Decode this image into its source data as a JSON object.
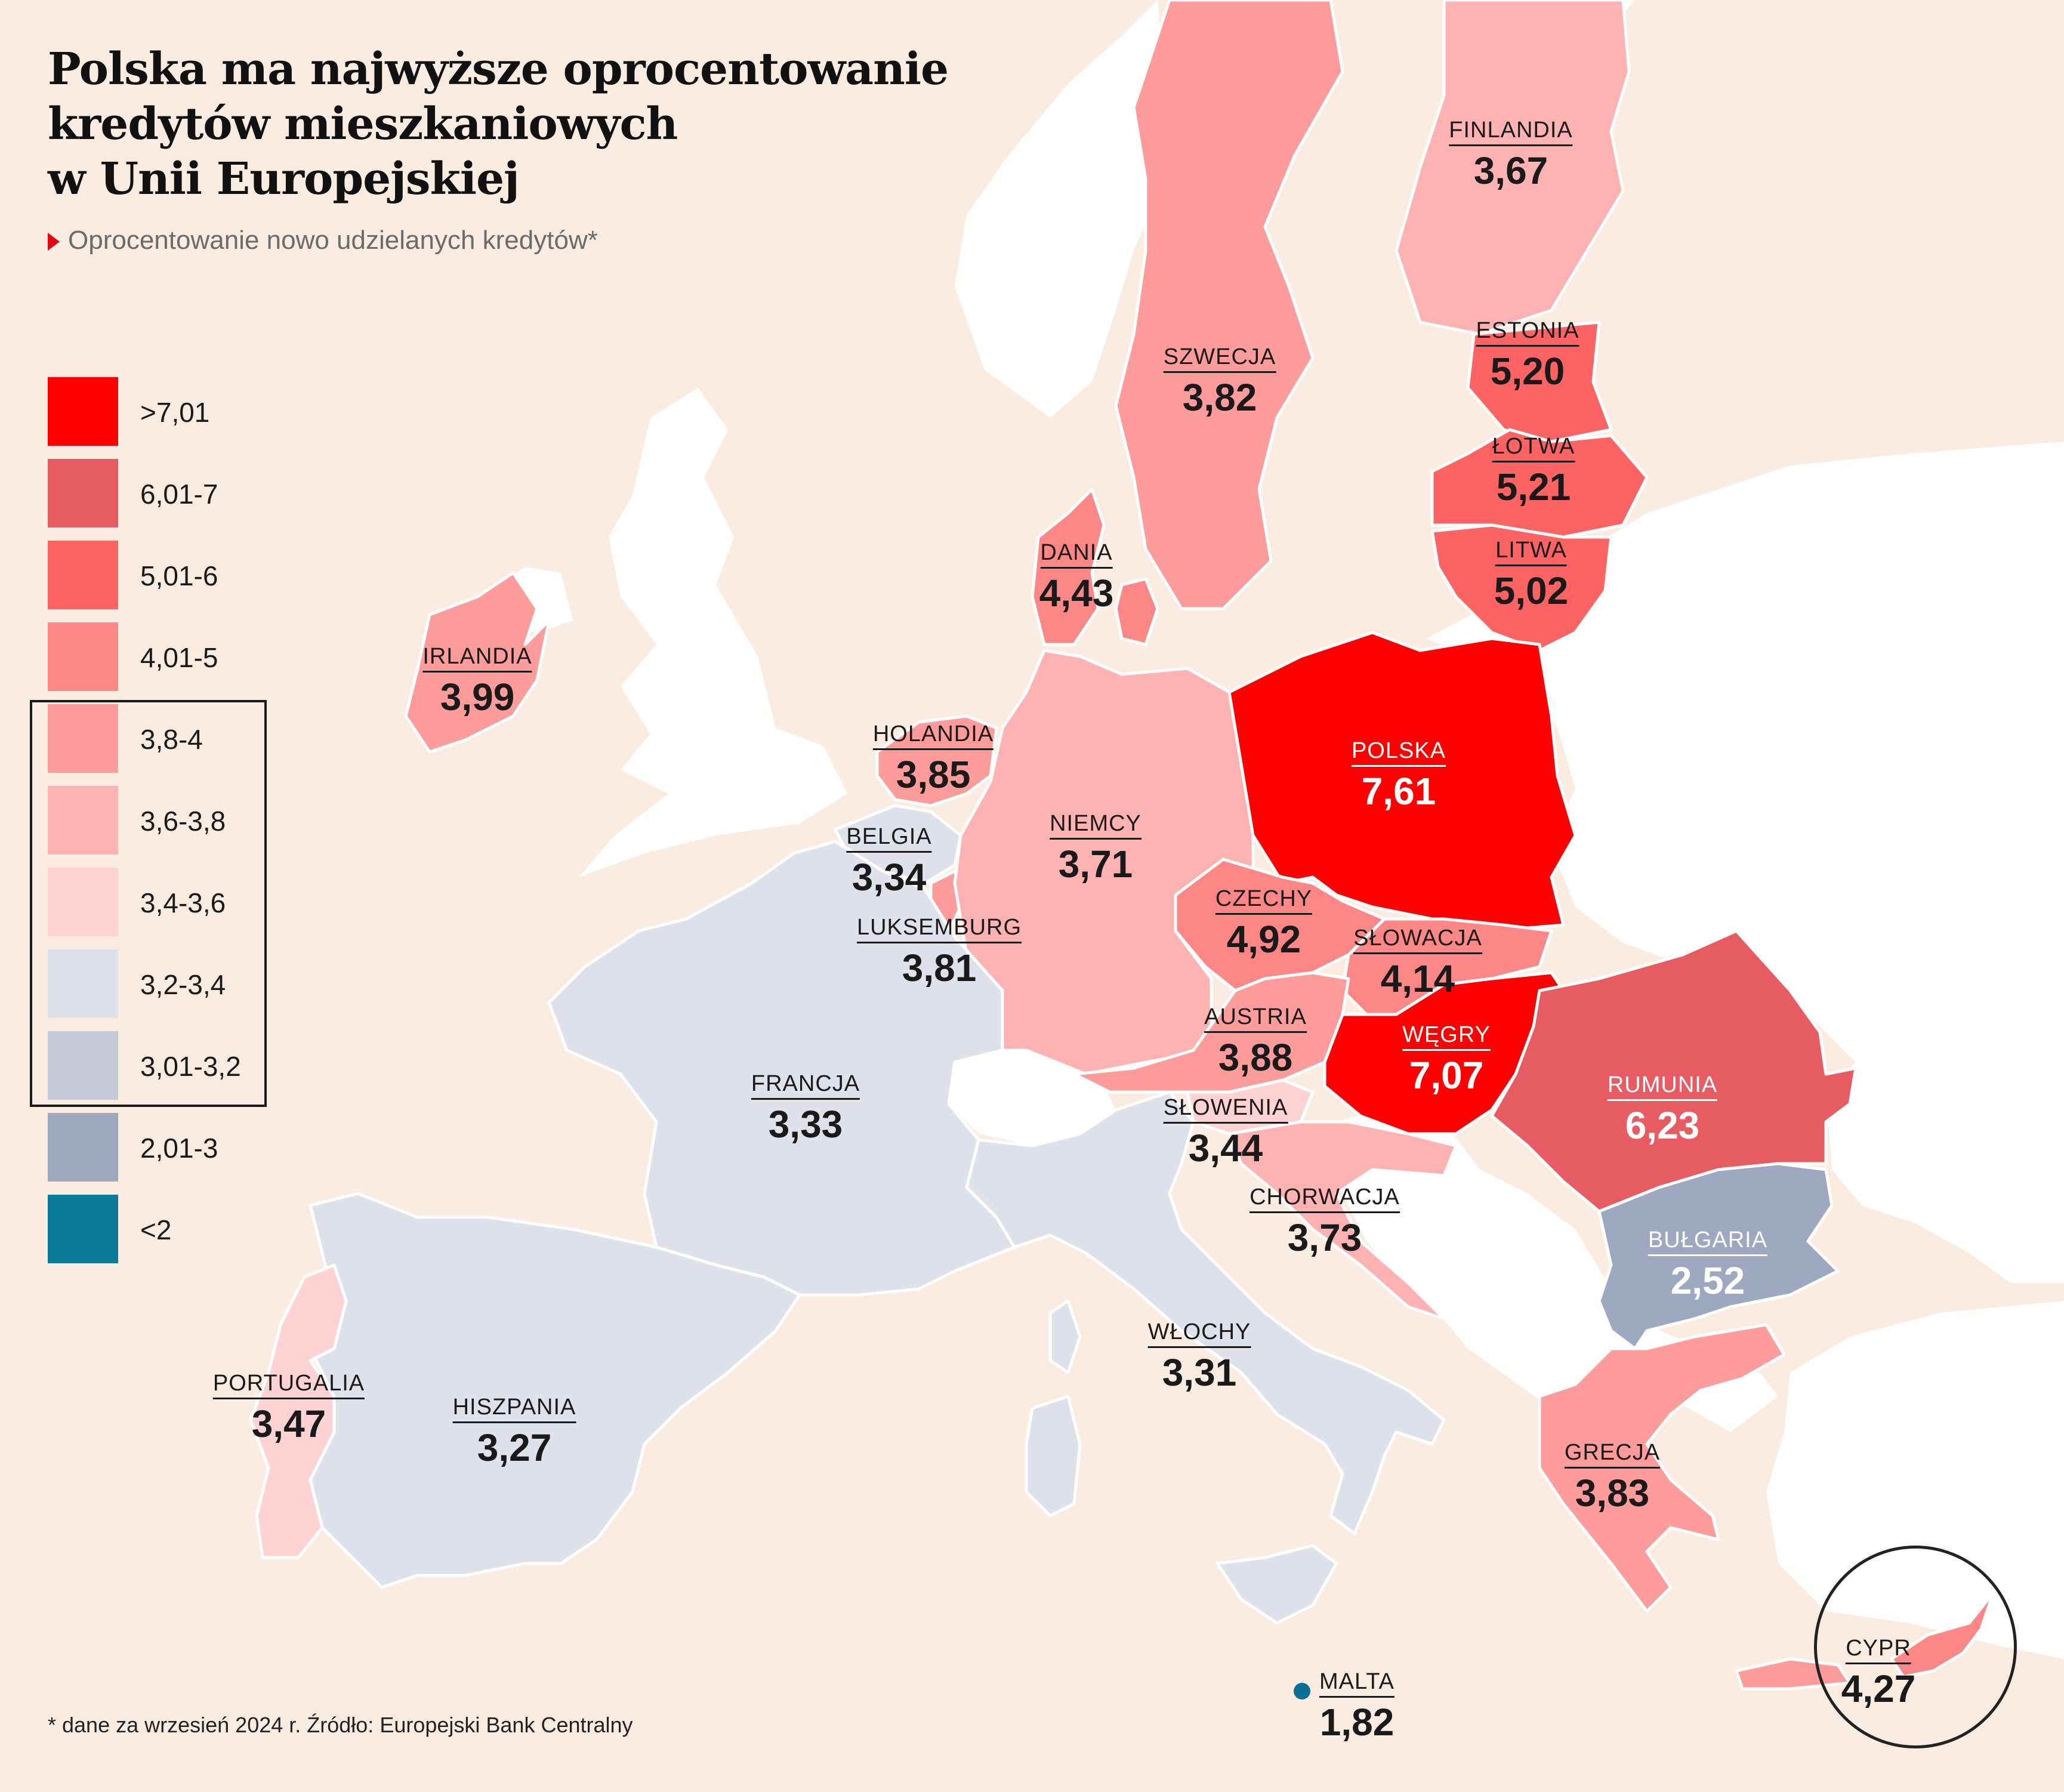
{
  "title_lines": [
    "Polska ma najwyższe oprocentowanie",
    "kredytów mieszkaniowych",
    "w Unii Europejskiej"
  ],
  "subtitle": "Oprocentowanie nowo udzielanych kredytów*",
  "footnote": "* dane za wrzesień 2024 r. Źródło: Europejski Bank Centralny",
  "legend": [
    {
      "label": ">7,01",
      "color": "#ff0000"
    },
    {
      "label": "6,01-7",
      "color": "#e75c62"
    },
    {
      "label": "5,01-6",
      "color": "#fd6362"
    },
    {
      "label": "4,01-5",
      "color": "#fd8787"
    },
    {
      "label": "3,8-4",
      "color": "#fe9b9b"
    },
    {
      "label": "3,6-3,8",
      "color": "#ffb2b2"
    },
    {
      "label": "3,4-3,6",
      "color": "#ffd3d3"
    },
    {
      "label": "3,2-3,4",
      "color": "#dfe2ea"
    },
    {
      "label": "3,01-3,2",
      "color": "#c5c9d8"
    },
    {
      "label": "2,01-3",
      "color": "#9ea8c0"
    },
    {
      "label": "<2",
      "color": "#0b7a9b"
    }
  ],
  "countries": [
    {
      "key": "finlandia",
      "name": "FINLANDIA",
      "value": "3,67",
      "color": "#ffb2b2"
    },
    {
      "key": "szwecja",
      "name": "SZWECJA",
      "value": "3,82",
      "color": "#fe9b9b"
    },
    {
      "key": "estonia",
      "name": "ESTONIA",
      "value": "5,20",
      "color": "#fd6362"
    },
    {
      "key": "lotwa",
      "name": "ŁOTWA",
      "value": "5,21",
      "color": "#fd6362"
    },
    {
      "key": "litwa",
      "name": "LITWA",
      "value": "5,02",
      "color": "#fd6362"
    },
    {
      "key": "dania",
      "name": "DANIA",
      "value": "4,43",
      "color": "#fd8787"
    },
    {
      "key": "irlandia",
      "name": "IRLANDIA",
      "value": "3,99",
      "color": "#fe9b9b"
    },
    {
      "key": "holandia",
      "name": "HOLANDIA",
      "value": "3,85",
      "color": "#fe9b9b"
    },
    {
      "key": "belgia",
      "name": "BELGIA",
      "value": "3,34",
      "color": "#dfe2ea"
    },
    {
      "key": "luksemburg",
      "name": "LUKSEMBURG",
      "value": "3,81",
      "color": "#fe9b9b"
    },
    {
      "key": "niemcy",
      "name": "NIEMCY",
      "value": "3,71",
      "color": "#ffb2b2"
    },
    {
      "key": "polska",
      "name": "POLSKA",
      "value": "7,61",
      "color": "#ff0000"
    },
    {
      "key": "czechy",
      "name": "CZECHY",
      "value": "4,92",
      "color": "#fd8787"
    },
    {
      "key": "slowacja",
      "name": "SŁOWACJA",
      "value": "4,14",
      "color": "#fd8787"
    },
    {
      "key": "austria",
      "name": "AUSTRIA",
      "value": "3,88",
      "color": "#fe9b9b"
    },
    {
      "key": "wegry",
      "name": "WĘGRY",
      "value": "7,07",
      "color": "#ff0000"
    },
    {
      "key": "slowenia",
      "name": "SŁOWENIA",
      "value": "3,44",
      "color": "#ffd3d3"
    },
    {
      "key": "chorwacja",
      "name": "CHORWACJA",
      "value": "3,73",
      "color": "#ffb2b2"
    },
    {
      "key": "rumunia",
      "name": "RUMUNIA",
      "value": "6,23",
      "color": "#e75c62"
    },
    {
      "key": "bulgaria",
      "name": "BUŁGARIA",
      "value": "2,52",
      "color": "#9ea8c0"
    },
    {
      "key": "francja",
      "name": "FRANCJA",
      "value": "3,33",
      "color": "#dfe2ea"
    },
    {
      "key": "wlochy",
      "name": "WŁOCHY",
      "value": "3,31",
      "color": "#dfe2ea"
    },
    {
      "key": "hiszpania",
      "name": "HISZPANIA",
      "value": "3,27",
      "color": "#dfe2ea"
    },
    {
      "key": "portugalia",
      "name": "PORTUGALIA",
      "value": "3,47",
      "color": "#ffd3d3"
    },
    {
      "key": "grecja",
      "name": "GRECJA",
      "value": "3,83",
      "color": "#fe9b9b"
    },
    {
      "key": "cypr",
      "name": "CYPR",
      "value": "4,27",
      "color": "#fd8787"
    },
    {
      "key": "malta",
      "name": "MALTA",
      "value": "1,82",
      "color": "#0b7a9b"
    }
  ]
}
